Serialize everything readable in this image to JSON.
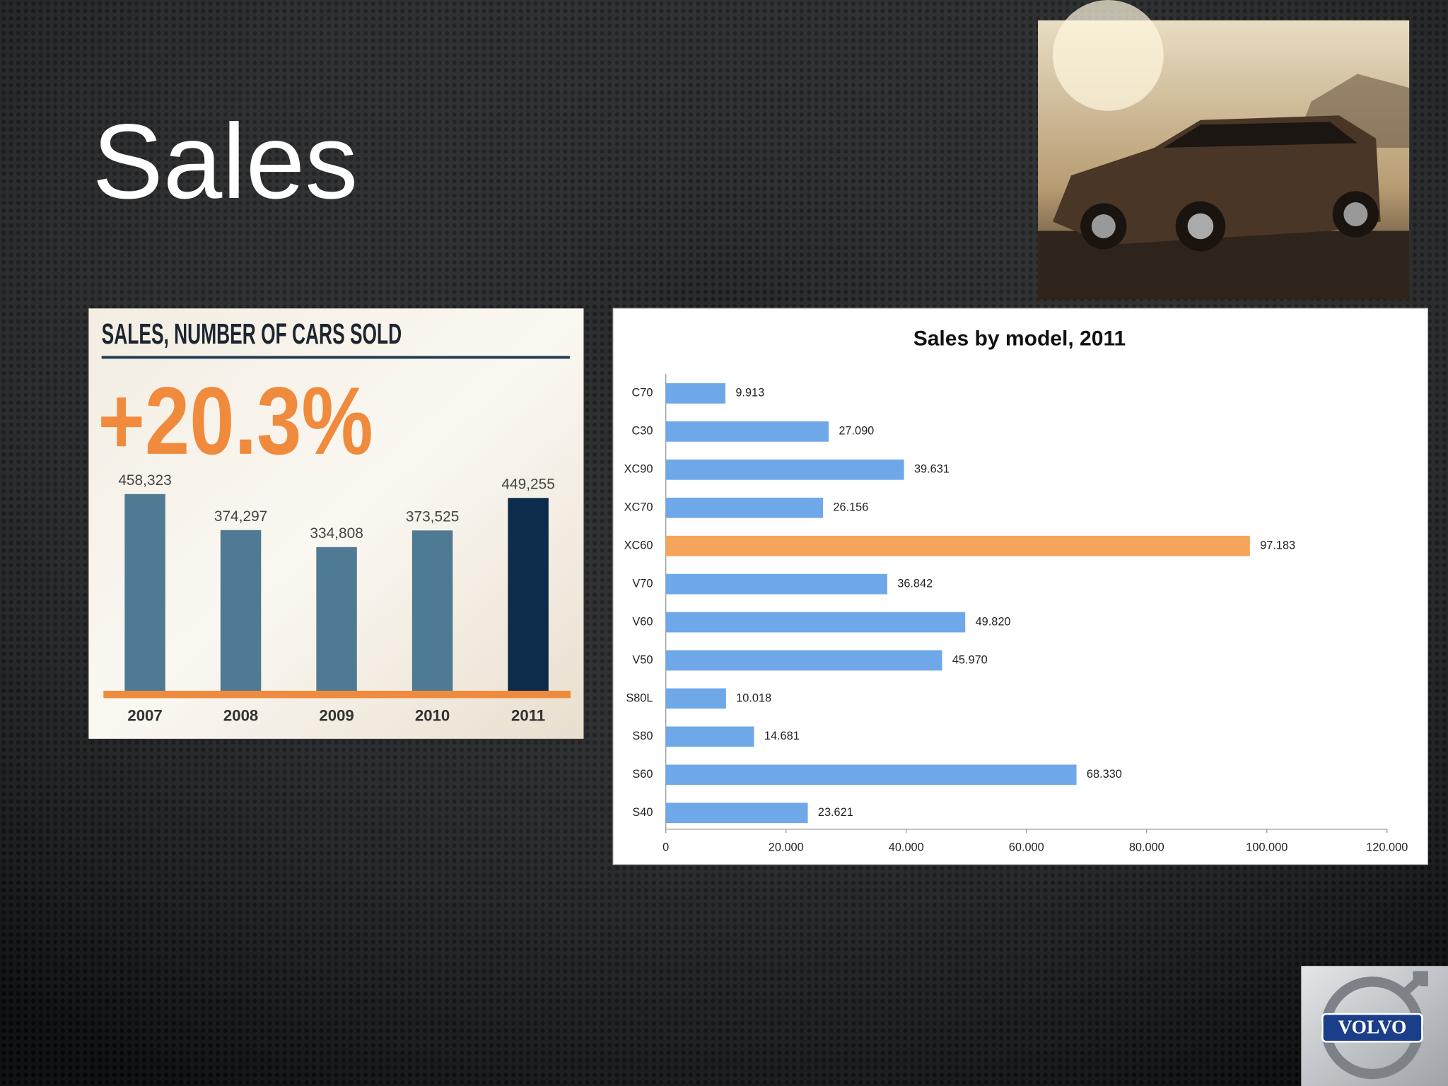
{
  "title": "Sales",
  "logo": "VOLVO",
  "chart_data": [
    {
      "type": "bar",
      "title": "SALES, NUMBER OF CARS SOLD",
      "annotation": "+20.3%",
      "categories": [
        "2007",
        "2008",
        "2009",
        "2010",
        "2011"
      ],
      "values": [
        458323,
        374297,
        334808,
        373525,
        449255
      ],
      "value_labels": [
        "458,323",
        "374,297",
        "334,808",
        "373,525",
        "449,255"
      ],
      "colors": [
        "#4f7a93",
        "#4f7a93",
        "#4f7a93",
        "#4f7a93",
        "#0d2b4a"
      ]
    },
    {
      "type": "barh",
      "title": "Sales by model, 2011",
      "categories": [
        "C70",
        "C30",
        "XC90",
        "XC70",
        "XC60",
        "V70",
        "V60",
        "V50",
        "S80L",
        "S80",
        "S60",
        "S40"
      ],
      "values": [
        9913,
        27090,
        39631,
        26156,
        97183,
        36842,
        49820,
        45970,
        10018,
        14681,
        68330,
        23621
      ],
      "value_labels": [
        "9.913",
        "27.090",
        "39.631",
        "26.156",
        "97.183",
        "36.842",
        "49.820",
        "45.970",
        "10.018",
        "14.681",
        "68.330",
        "23.621"
      ],
      "colors": [
        "#6fa8e8",
        "#6fa8e8",
        "#6fa8e8",
        "#6fa8e8",
        "#f5a55a",
        "#6fa8e8",
        "#6fa8e8",
        "#6fa8e8",
        "#6fa8e8",
        "#6fa8e8",
        "#6fa8e8",
        "#6fa8e8"
      ],
      "xlim": [
        0,
        120000
      ],
      "xticks": [
        0,
        {
          "value": 20000,
          "label": "20.000"
        },
        {
          "value": 40000,
          "label": "40.000"
        },
        {
          "value": 60000,
          "label": "60.000"
        },
        {
          "value": 80000,
          "label": "80.000"
        },
        {
          "value": 100000,
          "label": "100.000"
        },
        {
          "value": 120000,
          "label": "120.000"
        }
      ]
    }
  ]
}
